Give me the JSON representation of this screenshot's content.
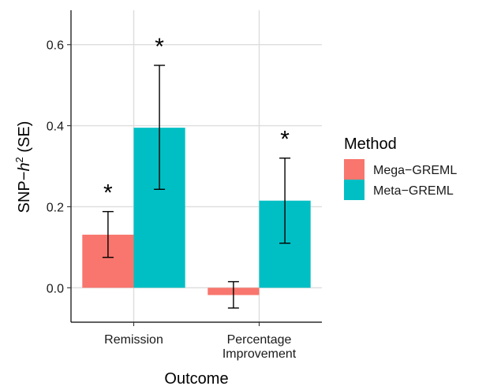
{
  "chart_data": {
    "type": "bar",
    "xlabel": "Outcome",
    "ylabel_prefix": "SNP−",
    "ylabel_var": "h",
    "ylabel_sup": "2",
    "ylabel_suffix": " (SE)",
    "ylim": [
      -0.085,
      0.685
    ],
    "yticks": [
      0.0,
      0.2,
      0.4,
      0.6
    ],
    "ytick_labels": [
      "0.0",
      "0.2",
      "0.4",
      "0.6"
    ],
    "categories": [
      {
        "lines": [
          "Remission"
        ]
      },
      {
        "lines": [
          "Percentage",
          "Improvement"
        ]
      }
    ],
    "legend": {
      "title": "Method",
      "position": "right"
    },
    "grid": true,
    "significance_marker": "*",
    "series": [
      {
        "name": "Mega−GREML",
        "color": "#F8766D",
        "values": [
          0.131,
          -0.018
        ],
        "err_low": [
          0.075,
          -0.05
        ],
        "err_high": [
          0.188,
          0.015
        ],
        "significant": [
          true,
          false
        ]
      },
      {
        "name": "Meta−GREML",
        "color": "#00BFC4",
        "values": [
          0.395,
          0.215
        ],
        "err_low": [
          0.243,
          0.11
        ],
        "err_high": [
          0.549,
          0.32
        ],
        "significant": [
          true,
          true
        ]
      }
    ]
  }
}
